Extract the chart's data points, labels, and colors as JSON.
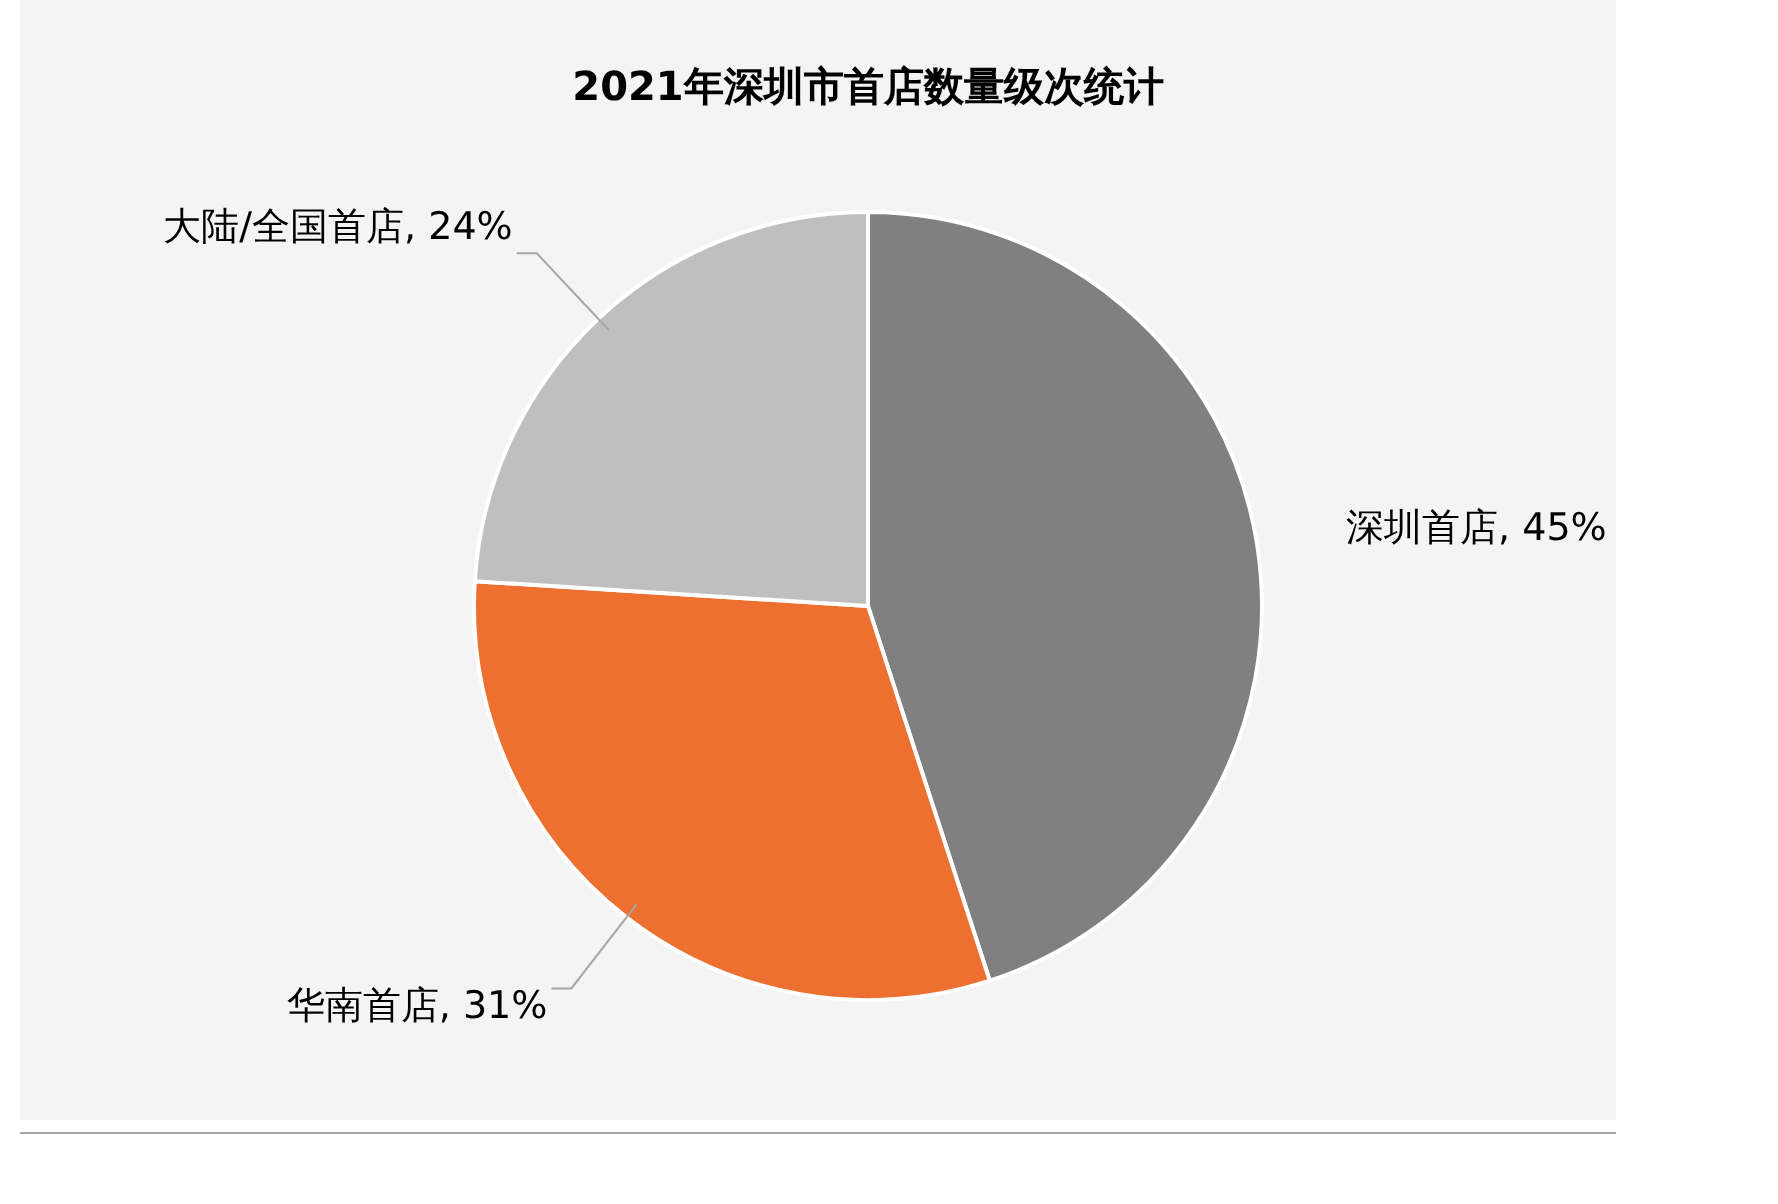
{
  "chart_data": {
    "type": "pie",
    "title": "2021年深圳市首店数量级次统计",
    "categories": [
      "深圳首店",
      "华南首店",
      "大陆/全国首店"
    ],
    "values": [
      45,
      31,
      24
    ],
    "colors": [
      "#808080",
      "#ed7030",
      "#bfbfbf"
    ],
    "value_labels": [
      "45%",
      "31%",
      "24%"
    ],
    "legend": false
  }
}
